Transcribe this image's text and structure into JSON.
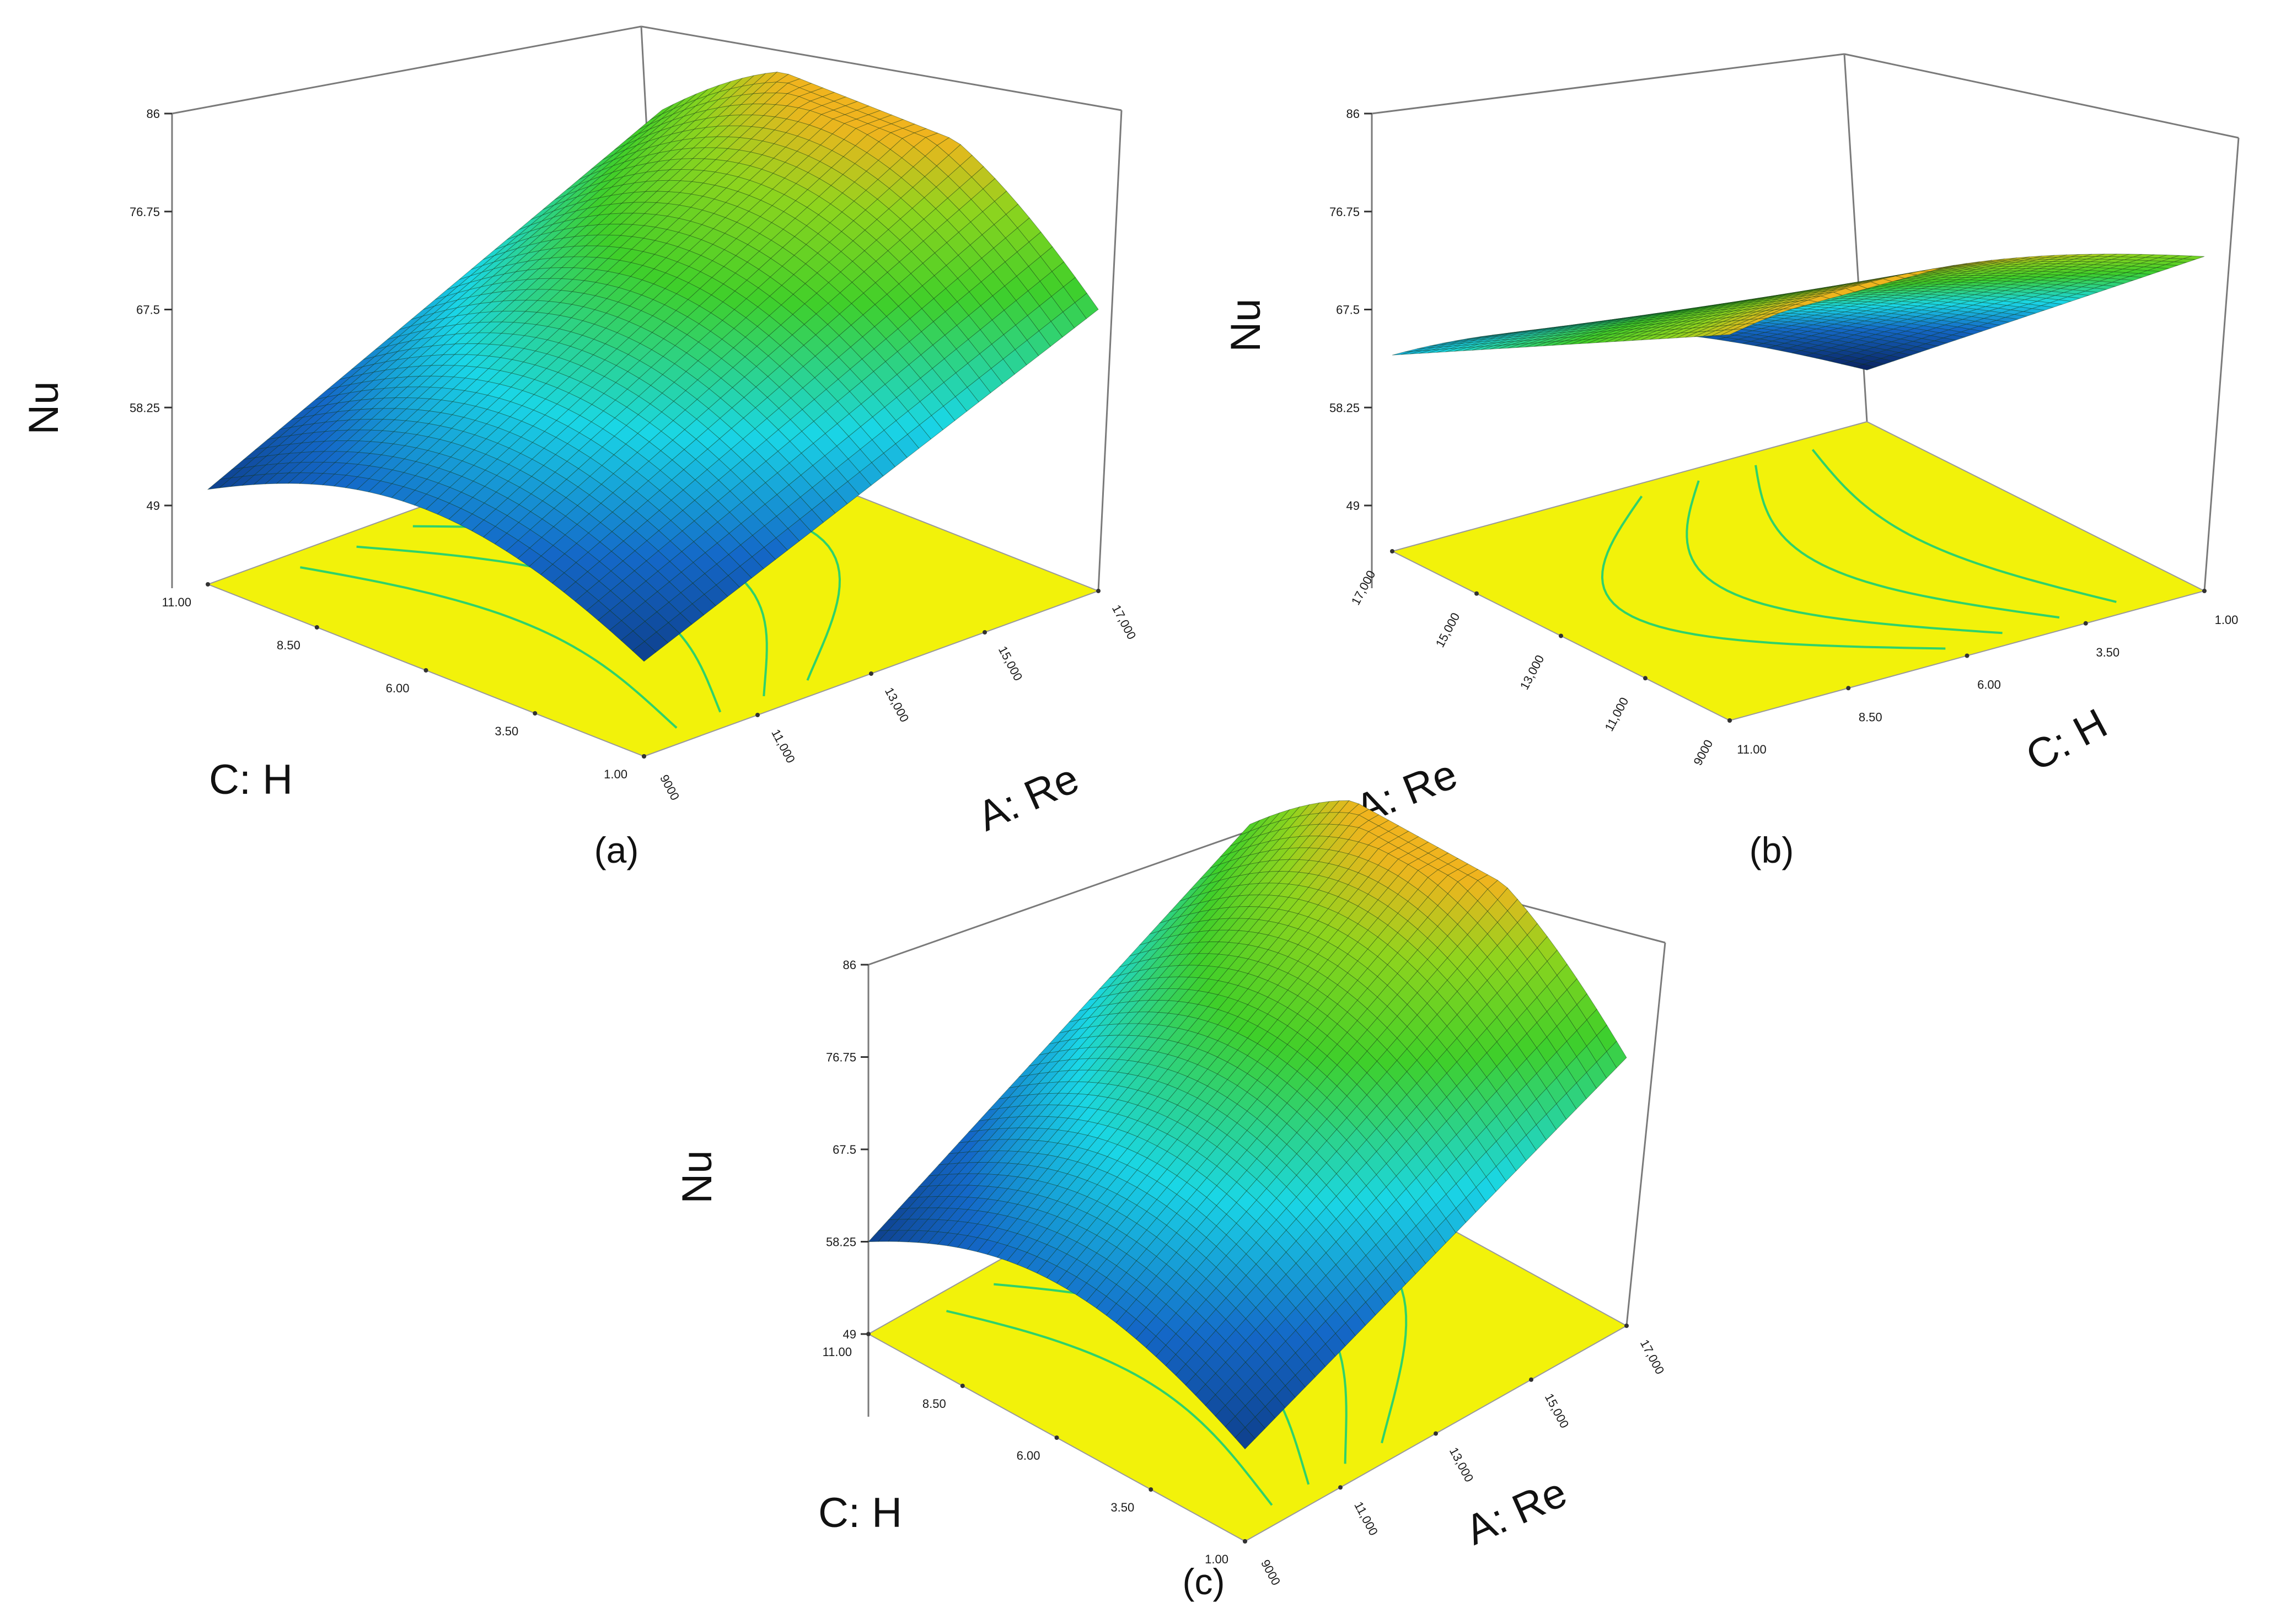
{
  "chart_data": [
    {
      "type": "surface",
      "panel_label": "(a)",
      "zlabel": "Nu",
      "xlabel": "C: H",
      "ylabel": "A: Re",
      "z_ticks": [
        "49",
        "58.25",
        "67.5",
        "76.75",
        "86"
      ],
      "x_ticks": [
        "1.00",
        "3.50",
        "6.00",
        "8.50",
        "11.00"
      ],
      "y_ticks": [
        "9000",
        "11,000",
        "13,000",
        "15,000",
        "17,000"
      ],
      "zlim": [
        49,
        86
      ],
      "xlim": [
        1,
        11
      ],
      "ylim": [
        9000,
        17000
      ]
    },
    {
      "type": "surface",
      "panel_label": "(b)",
      "zlabel": "Nu",
      "xlabel": "A: Re",
      "ylabel": "C: H",
      "z_ticks": [
        "49",
        "58.25",
        "67.5",
        "76.75",
        "86"
      ],
      "x_ticks": [
        "9000",
        "11,000",
        "13,000",
        "15,000",
        "17,000"
      ],
      "y_ticks": [
        "11.00",
        "8.50",
        "6.00",
        "3.50",
        "1.00"
      ],
      "zlim": [
        49,
        86
      ],
      "xlim": [
        9000,
        17000
      ],
      "ylim": [
        1,
        11
      ]
    },
    {
      "type": "surface",
      "panel_label": "(c)",
      "zlabel": "Nu",
      "xlabel": "C: H",
      "ylabel": "A: Re",
      "z_ticks": [
        "49",
        "58.25",
        "67.5",
        "76.75",
        "86"
      ],
      "x_ticks": [
        "1.00",
        "3.50",
        "6.00",
        "8.50",
        "11.00"
      ],
      "y_ticks": [
        "9000",
        "11,000",
        "13,000",
        "15,000",
        "17,000"
      ],
      "zlim": [
        49,
        86
      ],
      "xlim": [
        1,
        11
      ],
      "ylim": [
        9000,
        17000
      ]
    }
  ],
  "colors": {
    "floor": "#f2f20a",
    "contour": "#2fd26a",
    "surface_low": "#0a1f5c",
    "surface_mid": "#1ad6e6",
    "surface_high": "#3fcf2a",
    "surface_peak": "#f0b41e",
    "mesh": "#0b2f10",
    "frame": "#7a7a7a"
  }
}
